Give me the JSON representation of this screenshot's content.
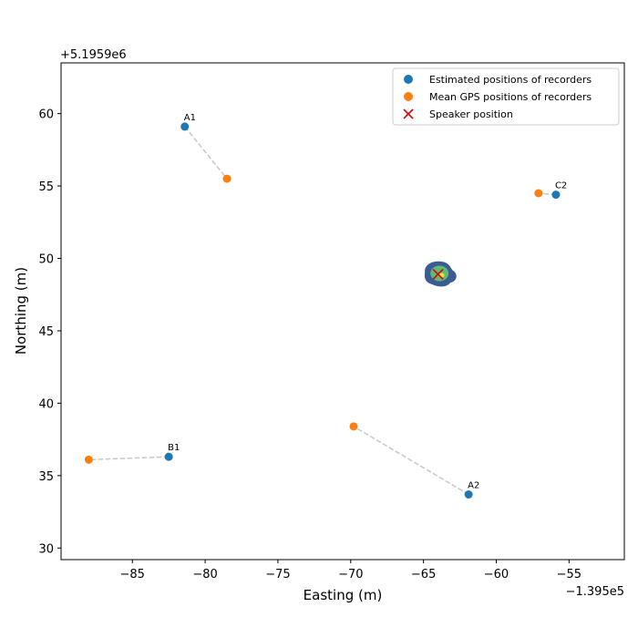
{
  "chart_data": {
    "type": "scatter",
    "title": "",
    "xlabel": "Easting (m)",
    "ylabel": "Northing (m)",
    "x_offset_label": "−1.395e5",
    "y_offset_label": "+5.1959e6",
    "xlim": [
      -89.9,
      -51.2
    ],
    "ylim": [
      29.2,
      63.5
    ],
    "xticks": [
      -85,
      -80,
      -75,
      -70,
      -65,
      -60,
      -55
    ],
    "xtick_labels": [
      "−85",
      "−80",
      "−75",
      "−70",
      "−65",
      "−60",
      "−55"
    ],
    "yticks": [
      30,
      35,
      40,
      45,
      50,
      55,
      60
    ],
    "ytick_labels": [
      "30",
      "35",
      "40",
      "45",
      "50",
      "55",
      "60"
    ],
    "grid": false,
    "legend_position": "top-right",
    "colors": {
      "estimated": "#1f77b4",
      "gps": "#ff7f0e",
      "speaker": "#e00000",
      "link": "#c8c8c8",
      "density_outer": "#3b5b92",
      "density_mid": "#5dbb77",
      "density_inner": "#e8e43a"
    },
    "series": [
      {
        "name": "Estimated positions of recorders",
        "marker": "circle",
        "points": [
          {
            "label": "A1",
            "x": -81.4,
            "y": 59.1
          },
          {
            "label": "C2",
            "x": -55.9,
            "y": 54.4
          },
          {
            "label": "B1",
            "x": -82.5,
            "y": 36.3
          },
          {
            "label": "A2",
            "x": -61.9,
            "y": 33.7
          }
        ]
      },
      {
        "name": "Mean GPS positions of recorders",
        "marker": "circle",
        "points": [
          {
            "label": "A1",
            "x": -78.5,
            "y": 55.5
          },
          {
            "label": "C2",
            "x": -57.1,
            "y": 54.5
          },
          {
            "label": "B1",
            "x": -88.0,
            "y": 36.1
          },
          {
            "label": "A2",
            "x": -69.8,
            "y": 38.4
          }
        ]
      },
      {
        "name": "Speaker position",
        "marker": "x",
        "points": [
          {
            "x": -64.0,
            "y": 48.9
          }
        ]
      }
    ],
    "density_region": {
      "center": {
        "x": -63.9,
        "y": 48.9
      },
      "levels": [
        "outer",
        "mid",
        "inner"
      ]
    }
  }
}
